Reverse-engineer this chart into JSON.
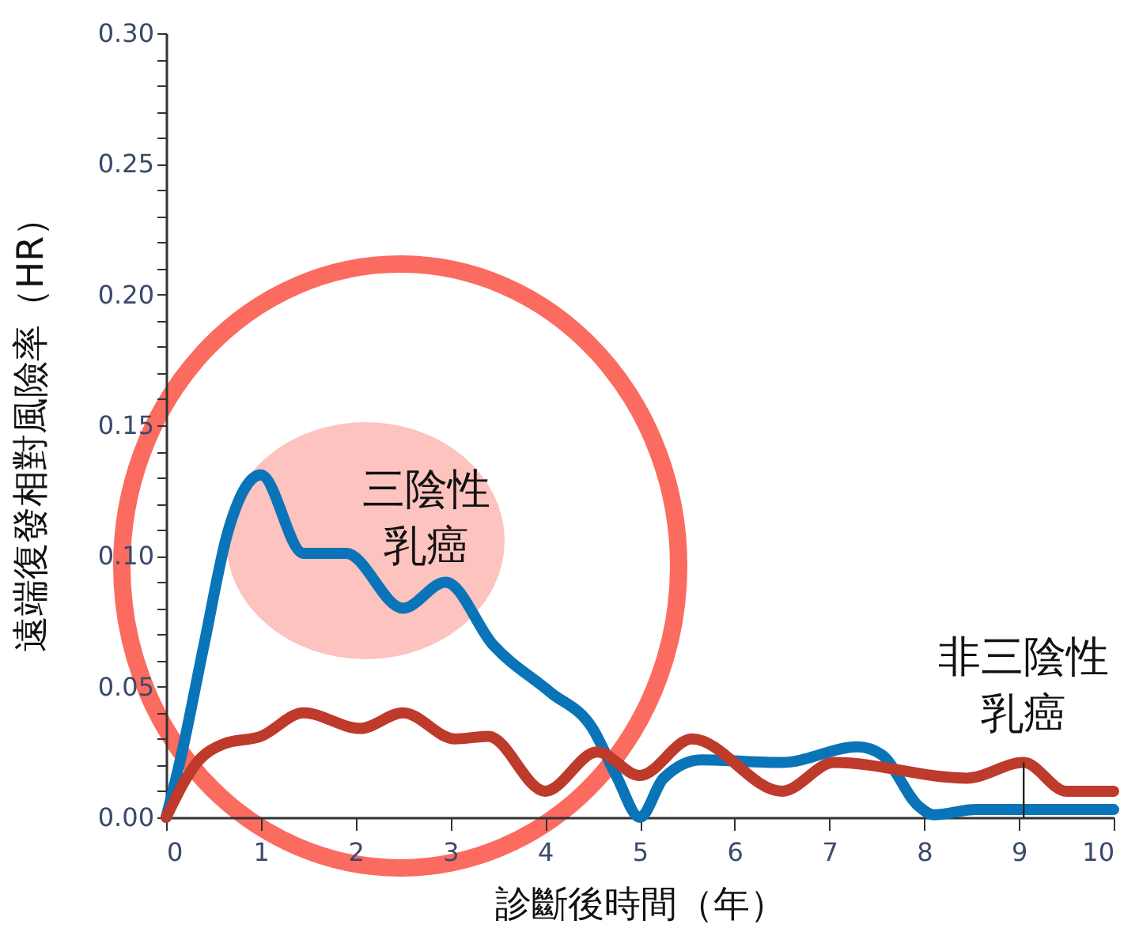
{
  "chart_data": {
    "type": "line",
    "xlabel": "診斷後時間（年）",
    "ylabel": "遠端復發相對風險率（HR）",
    "series": [
      {
        "color": "#0a74b8",
        "x": [
          0,
          0.15,
          0.4,
          0.65,
          1.0,
          1.45,
          1.9,
          2.5,
          2.95,
          3.45,
          4.05,
          4.5,
          4.75,
          5.0,
          5.25,
          5.65,
          6.5,
          7.3,
          7.55,
          7.95,
          8.1,
          8.55,
          10
        ],
        "values": [
          0,
          0.022,
          0.066,
          0.109,
          0.131,
          0.101,
          0.101,
          0.08,
          0.09,
          0.066,
          0.048,
          0.034,
          0.016,
          0,
          0.015,
          0.022,
          0.021,
          0.027,
          0.024,
          0.004,
          0.001,
          0.003,
          0.003
        ]
      },
      {
        "color": "#be3a2a",
        "x": [
          0,
          0.35,
          0.6,
          1.0,
          1.45,
          2.05,
          2.5,
          3.05,
          3.4,
          4.0,
          4.55,
          5.0,
          5.55,
          6.5,
          7.05,
          8.45,
          9.05,
          9.5,
          10
        ],
        "values": [
          0,
          0.022,
          0.028,
          0.031,
          0.04,
          0.034,
          0.04,
          0.03,
          0.031,
          0.01,
          0.025,
          0.016,
          0.03,
          0.01,
          0.021,
          0.015,
          0.021,
          0.01,
          0.01
        ]
      }
    ],
    "annotations": [
      {
        "text": "三陰性乳癌",
        "x": 2.75,
        "y": 0.085
      },
      {
        "text": "非三陰性乳癌",
        "x": 9.05,
        "y": 0.021
      }
    ],
    "xlim": [
      0,
      10
    ],
    "xticks": [
      0,
      1,
      2,
      3,
      4,
      5,
      6,
      7,
      8,
      9,
      10
    ],
    "ylim": [
      0,
      0.3
    ],
    "yticks": [
      {
        "value": 0,
        "label": "0.00"
      },
      {
        "value": 0.01,
        "label": null
      },
      {
        "value": 0.02,
        "label": null
      },
      {
        "value": 0.03,
        "label": null
      },
      {
        "value": 0.04,
        "label": null
      },
      {
        "value": 0.05,
        "label": "0.05"
      },
      {
        "value": 0.06,
        "label": null
      },
      {
        "value": 0.07,
        "label": null
      },
      {
        "value": 0.08,
        "label": null
      },
      {
        "value": 0.09,
        "label": null
      },
      {
        "value": 0.1,
        "label": "0.10"
      },
      {
        "value": 0.11,
        "label": null
      },
      {
        "value": 0.12,
        "label": null
      },
      {
        "value": 0.13,
        "label": null
      },
      {
        "value": 0.14,
        "label": null
      },
      {
        "value": 0.15,
        "label": "0.15"
      },
      {
        "value": 0.16,
        "label": null
      },
      {
        "value": 0.17,
        "label": null
      },
      {
        "value": 0.18,
        "label": null
      },
      {
        "value": 0.19,
        "label": null
      },
      {
        "value": 0.2,
        "label": "0.20"
      },
      {
        "value": 0.21,
        "label": null
      },
      {
        "value": 0.22,
        "label": null
      },
      {
        "value": 0.23,
        "label": null
      },
      {
        "value": 0.24,
        "label": null
      },
      {
        "value": 0.25,
        "label": "0.25"
      },
      {
        "value": 0.26,
        "label": null
      },
      {
        "value": 0.27,
        "label": null
      },
      {
        "value": 0.28,
        "label": null
      },
      {
        "value": 0.29,
        "label": null
      },
      {
        "value": 0.3,
        "label": "0.30"
      }
    ],
    "line_style": "solid"
  }
}
